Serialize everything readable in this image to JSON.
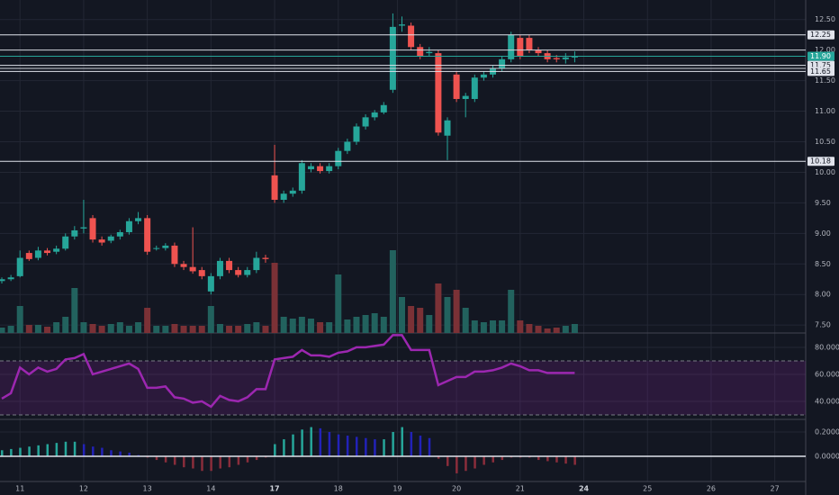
{
  "chart_data": [
    {
      "type": "candlestick",
      "open": [
        8.22,
        8.25,
        8.3,
        8.68,
        8.6,
        8.72,
        8.7,
        8.75,
        8.95,
        9.08,
        9.25,
        8.9,
        8.88,
        8.95,
        9.02,
        9.2,
        9.25,
        8.75,
        8.76,
        8.8,
        8.5,
        8.45,
        8.4,
        8.05,
        8.3,
        8.55,
        8.4,
        8.32,
        8.4,
        8.6,
        9.95,
        9.55,
        9.65,
        9.7,
        10.05,
        10.1,
        10.02,
        10.1,
        10.35,
        10.5,
        10.75,
        10.9,
        10.98,
        11.35,
        12.4,
        12.4,
        12.05,
        11.95,
        11.95,
        10.6,
        11.6,
        11.2,
        11.2,
        11.55,
        11.6,
        11.7,
        11.85,
        12.2,
        12.2,
        12.0,
        11.95,
        11.87,
        11.85,
        11.88
      ],
      "high": [
        8.28,
        8.32,
        8.72,
        8.72,
        8.78,
        8.76,
        8.8,
        9.0,
        9.12,
        9.55,
        9.3,
        8.95,
        8.98,
        9.06,
        9.25,
        9.35,
        9.3,
        8.8,
        8.84,
        8.85,
        8.55,
        9.1,
        8.45,
        8.35,
        8.6,
        8.6,
        8.45,
        8.45,
        8.7,
        8.65,
        10.45,
        9.7,
        9.75,
        10.2,
        10.15,
        10.15,
        10.15,
        10.4,
        10.55,
        10.8,
        10.95,
        11.02,
        11.15,
        12.6,
        12.55,
        12.45,
        12.1,
        12.05,
        12.0,
        10.9,
        11.65,
        11.3,
        11.6,
        11.65,
        11.75,
        11.9,
        12.3,
        12.25,
        12.25,
        12.05,
        12.0,
        11.92,
        11.95,
        11.98
      ],
      "low": [
        8.18,
        8.22,
        8.28,
        8.55,
        8.56,
        8.64,
        8.66,
        8.72,
        8.9,
        9.0,
        8.85,
        8.8,
        8.84,
        8.9,
        8.98,
        9.15,
        8.65,
        8.72,
        8.72,
        8.45,
        8.4,
        8.34,
        8.25,
        8.0,
        8.25,
        8.35,
        8.28,
        8.28,
        8.35,
        8.52,
        9.5,
        9.5,
        9.6,
        9.65,
        10.0,
        9.98,
        9.98,
        10.05,
        10.3,
        10.45,
        10.7,
        10.85,
        10.95,
        11.3,
        12.3,
        12.0,
        11.85,
        11.9,
        10.6,
        10.2,
        11.15,
        10.9,
        11.15,
        11.5,
        11.55,
        11.65,
        11.8,
        11.85,
        11.95,
        11.9,
        11.8,
        11.8,
        11.78,
        11.8
      ],
      "close": [
        8.25,
        8.28,
        8.6,
        8.58,
        8.72,
        8.68,
        8.75,
        8.95,
        9.05,
        9.1,
        8.9,
        8.85,
        8.95,
        9.02,
        9.2,
        9.25,
        8.7,
        8.76,
        8.8,
        8.5,
        8.45,
        8.38,
        8.3,
        8.3,
        8.55,
        8.4,
        8.32,
        8.4,
        8.6,
        8.58,
        9.55,
        9.65,
        9.7,
        10.15,
        10.1,
        10.02,
        10.1,
        10.35,
        10.5,
        10.75,
        10.9,
        10.98,
        11.1,
        12.38,
        12.42,
        12.05,
        11.9,
        11.97,
        10.65,
        10.85,
        11.2,
        11.25,
        11.55,
        11.6,
        11.7,
        11.85,
        12.25,
        11.9,
        12.0,
        11.95,
        11.85,
        11.85,
        11.88,
        11.9
      ],
      "volume": [
        6,
        8,
        30,
        9,
        9,
        7,
        12,
        18,
        50,
        12,
        10,
        8,
        10,
        12,
        8,
        12,
        28,
        8,
        8,
        10,
        8,
        8,
        8,
        30,
        10,
        8,
        8,
        10,
        12,
        8,
        78,
        18,
        16,
        18,
        16,
        12,
        12,
        65,
        15,
        18,
        20,
        22,
        18,
        92,
        40,
        30,
        28,
        20,
        55,
        40,
        48,
        28,
        14,
        12,
        14,
        14,
        48,
        14,
        10,
        8,
        5,
        6,
        8,
        10
      ],
      "up_color": "#26a69a",
      "down_color": "#ef5350",
      "volume_up_color": "#22625e",
      "volume_down_color": "#7b3136",
      "ylim": [
        7.37,
        12.82
      ],
      "yticks": [
        {
          "value": 7.5,
          "label": "7.50"
        },
        {
          "value": 8,
          "label": "8.00"
        },
        {
          "value": 8.5,
          "label": "8.50"
        },
        {
          "value": 9,
          "label": "9.00"
        },
        {
          "value": 9.5,
          "label": "9.50"
        },
        {
          "value": 10,
          "label": "10.00"
        },
        {
          "value": 10.5,
          "label": "10.50"
        },
        {
          "value": 11,
          "label": "11.00"
        },
        {
          "value": 11.5,
          "label": "11.50"
        },
        {
          "value": 12,
          "label": "12.00"
        },
        {
          "value": 12.5,
          "label": "12.50"
        }
      ],
      "levels": [
        {
          "value": 12.25,
          "label": "12.25"
        },
        {
          "value": 11.75,
          "label": "11.75"
        },
        {
          "value": 11.65,
          "label": "11.65"
        },
        {
          "value": 10.18,
          "label": "10.18"
        }
      ],
      "extra_levels": [
        12.0,
        11.7
      ],
      "last_price": {
        "value": 11.9,
        "label": "11.90"
      },
      "grid": true
    },
    {
      "type": "line",
      "values": [
        42,
        46,
        65,
        60,
        65,
        62,
        64,
        71,
        72,
        75,
        60,
        62,
        64,
        66,
        68,
        64,
        50,
        50,
        51,
        43,
        42,
        39,
        40,
        36,
        44,
        41,
        40,
        43,
        49,
        49,
        71,
        72,
        73,
        78,
        74,
        74,
        73,
        76,
        77,
        80,
        80,
        81,
        82,
        89,
        89,
        78,
        78,
        78,
        52,
        55,
        58,
        58,
        62,
        62,
        63,
        65,
        68,
        66,
        63,
        63,
        61,
        61,
        61,
        61
      ],
      "color": "#9c27b0",
      "band": [
        30,
        70
      ],
      "band_color": "rgba(156,39,176,0.18)",
      "ylim": [
        27.3,
        89.3
      ],
      "yticks": [
        {
          "value": 40,
          "label": "40.0000"
        },
        {
          "value": 60,
          "label": "60.0000"
        },
        {
          "value": 80,
          "label": "80.0000"
        }
      ],
      "grid": true
    },
    {
      "type": "bar",
      "values": [
        0.05,
        0.06,
        0.07,
        0.08,
        0.09,
        0.1,
        0.11,
        0.12,
        0.12,
        0.1,
        0.08,
        0.07,
        0.05,
        0.04,
        0.03,
        0.01,
        -0.01,
        -0.03,
        -0.05,
        -0.07,
        -0.09,
        -0.1,
        -0.12,
        -0.12,
        -0.1,
        -0.09,
        -0.07,
        -0.05,
        -0.03,
        -0.01,
        0.1,
        0.14,
        0.18,
        0.22,
        0.24,
        0.23,
        0.2,
        0.18,
        0.17,
        0.16,
        0.15,
        0.14,
        0.14,
        0.2,
        0.24,
        0.2,
        0.17,
        0.15,
        -0.02,
        -0.08,
        -0.14,
        -0.12,
        -0.1,
        -0.07,
        -0.05,
        -0.03,
        -0.01,
        -0.01,
        -0.01,
        -0.03,
        -0.04,
        -0.05,
        -0.06,
        -0.07
      ],
      "rising_color": "#26a69a",
      "falling_color": "#2222b8",
      "negative_color": "#8a2d3b",
      "ylim": [
        -0.207,
        0.296
      ],
      "yticks": [
        {
          "value": 0,
          "label": "0.0000"
        },
        {
          "value": 0.2,
          "label": "0.2000"
        }
      ],
      "xlim": [
        -0.2,
        88.4
      ],
      "xticks": [
        {
          "value": 2,
          "label": "11"
        },
        {
          "value": 9,
          "label": "12"
        },
        {
          "value": 16,
          "label": "13"
        },
        {
          "value": 23,
          "label": "14"
        },
        {
          "value": 30,
          "label": "17",
          "bold": true
        },
        {
          "value": 37,
          "label": "18"
        },
        {
          "value": 43.5,
          "label": "19"
        },
        {
          "value": 50,
          "label": "20"
        },
        {
          "value": 57,
          "label": "21"
        },
        {
          "value": 64,
          "label": "24",
          "bold": true
        },
        {
          "value": 71,
          "label": "25"
        },
        {
          "value": 78,
          "label": "26"
        },
        {
          "value": 85,
          "label": "27"
        }
      ],
      "grid": true
    }
  ]
}
